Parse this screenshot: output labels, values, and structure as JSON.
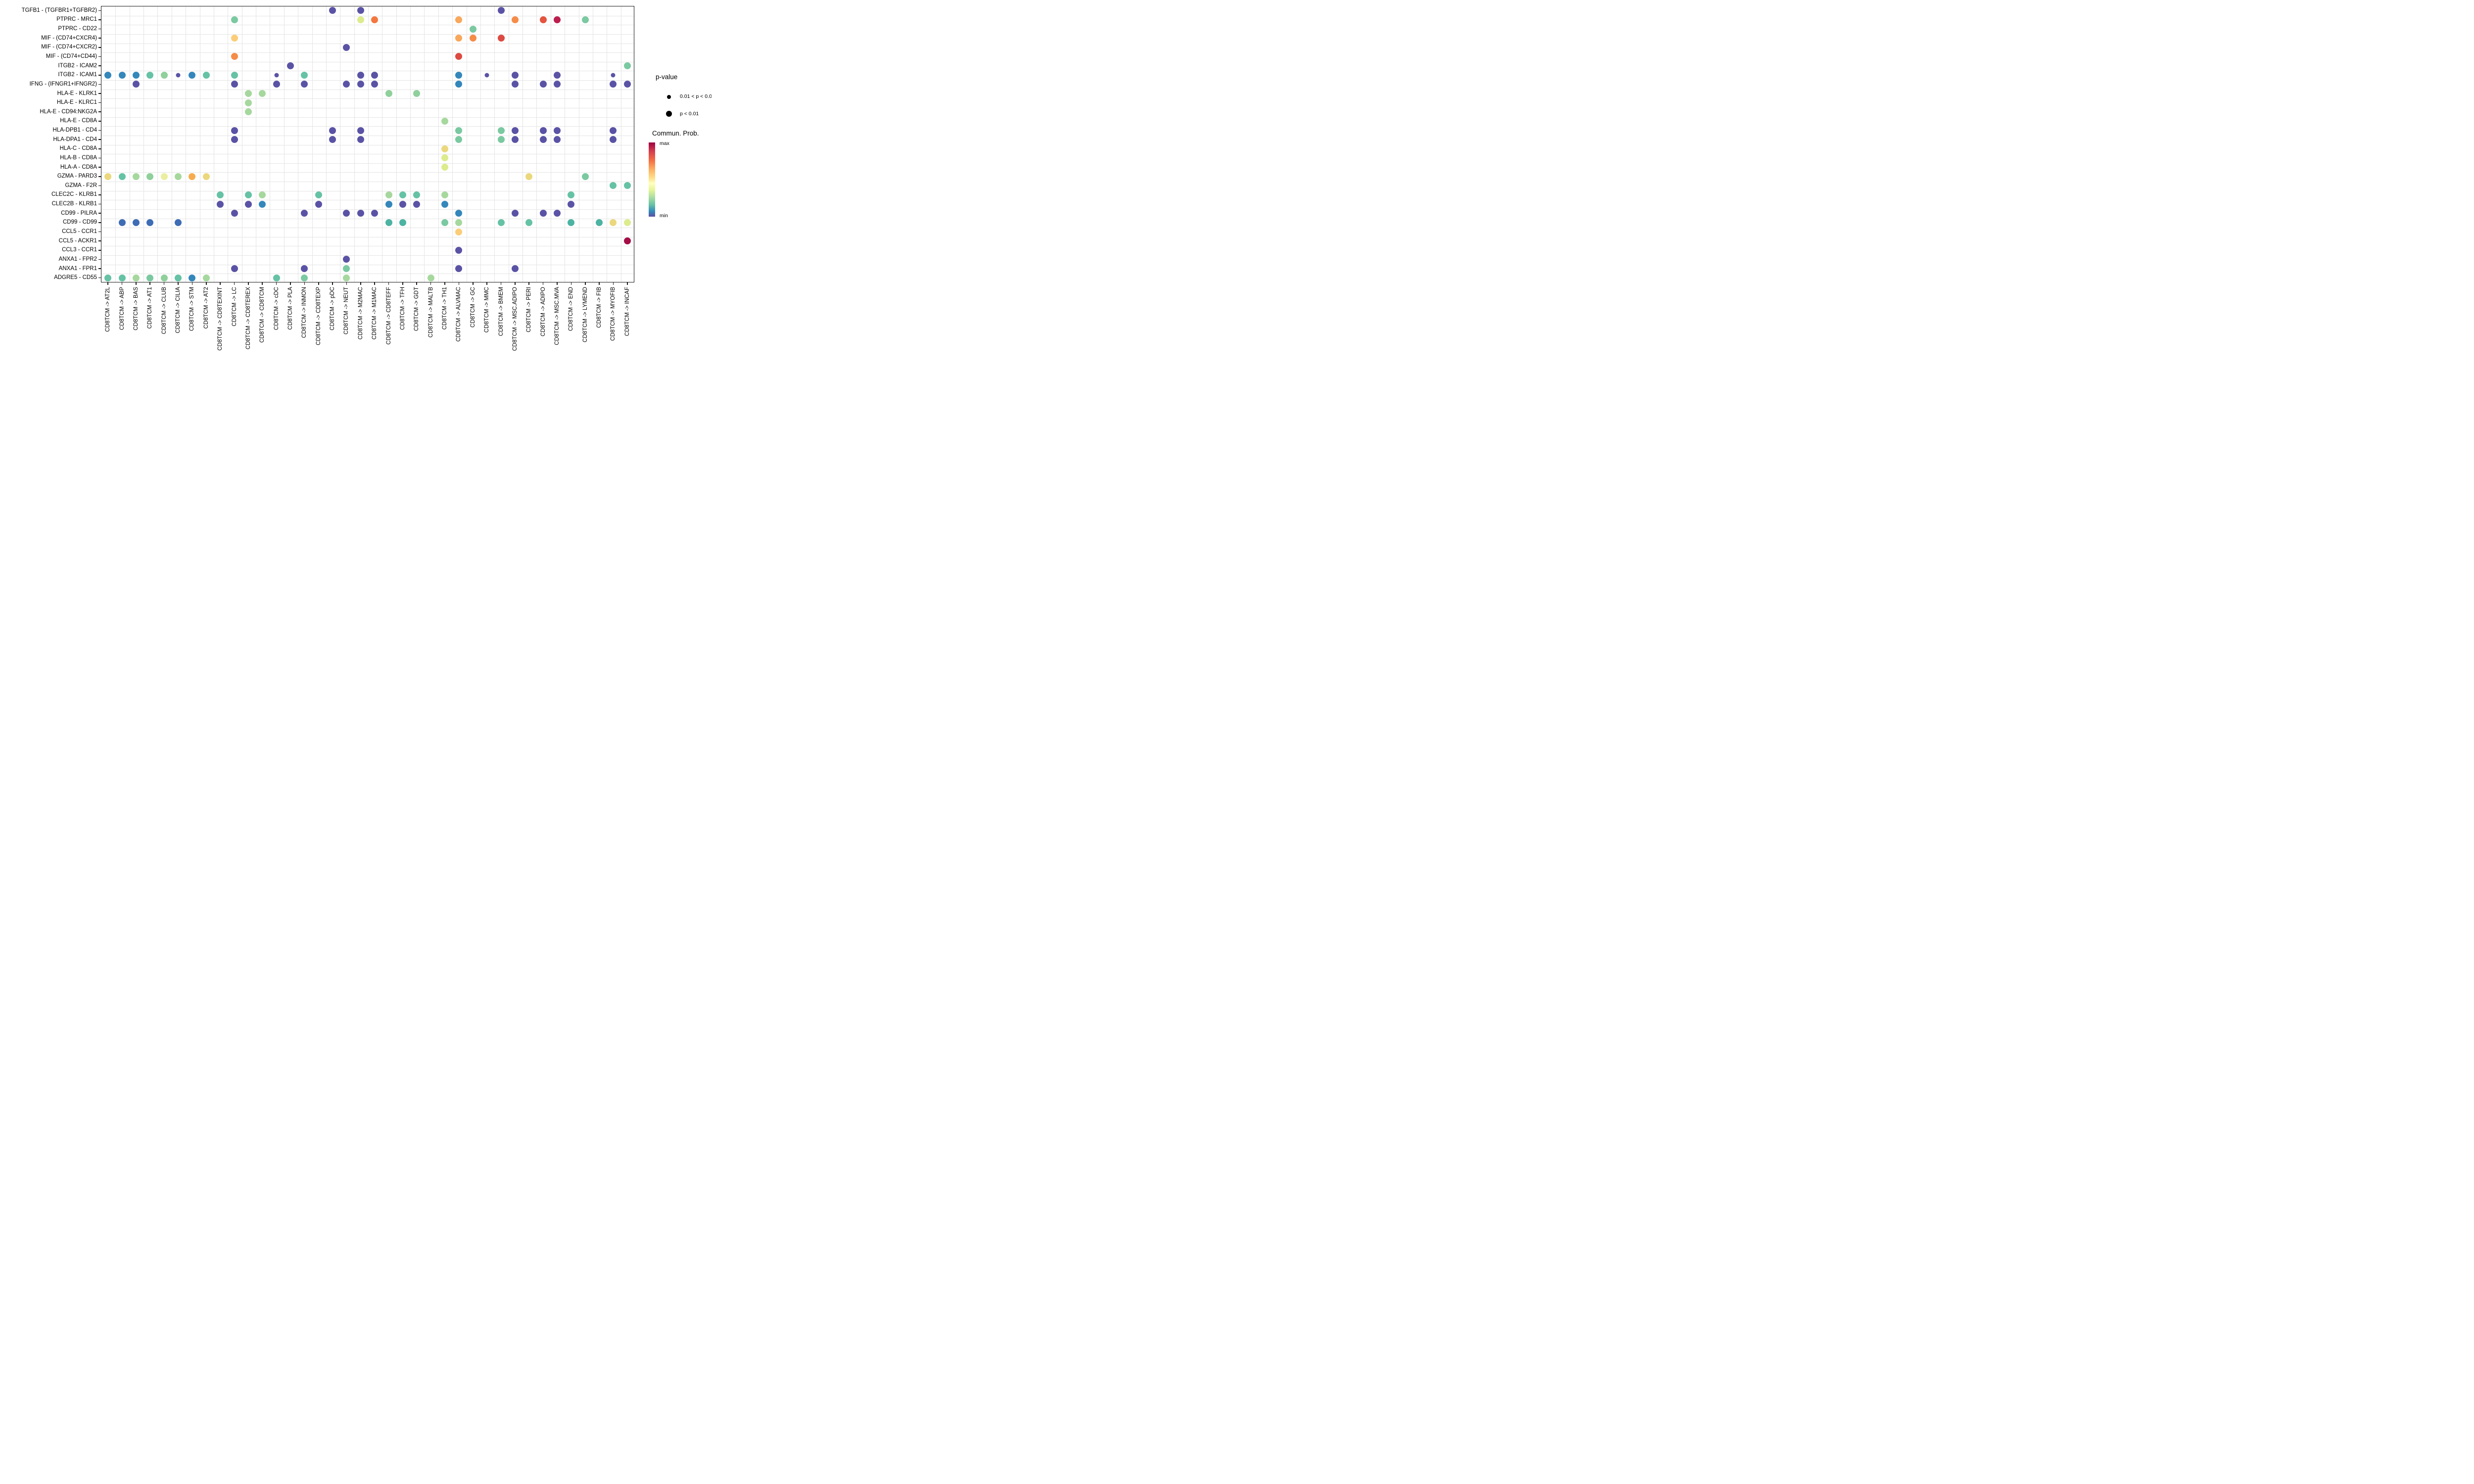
{
  "chart_data": {
    "type": "scatter",
    "title": "",
    "xlabel": "",
    "ylabel": "",
    "grid": "on",
    "legend_position": "right",
    "rows": [
      "TGFB1 - (TGFBR1+TGFBR2)",
      "PTPRC - MRC1",
      "PTPRC - CD22",
      "MIF - (CD74+CXCR4)",
      "MIF - (CD74+CXCR2)",
      "MIF - (CD74+CD44)",
      "ITGB2 - ICAM2",
      "ITGB2 - ICAM1",
      "IFNG - (IFNGR1+IFNGR2)",
      "HLA-E - KLRK1",
      "HLA-E - KLRC1",
      "HLA-E - CD94:NKG2A",
      "HLA-E - CD8A",
      "HLA-DPB1 - CD4",
      "HLA-DPA1 - CD4",
      "HLA-C - CD8A",
      "HLA-B - CD8A",
      "HLA-A - CD8A",
      "GZMA - PARD3",
      "GZMA - F2R",
      "CLEC2C - KLRB1",
      "CLEC2B - KLRB1",
      "CD99 - PILRA",
      "CD99 - CD99",
      "CCL5 - CCR1",
      "CCL5 - ACKR1",
      "CCL3 - CCR1",
      "ANXA1 - FPR2",
      "ANXA1 - FPR1",
      "ADGRE5 - CD55"
    ],
    "columns": [
      "CD8TCM -> AT2L",
      "CD8TCM -> ABP",
      "CD8TCM -> BAS",
      "CD8TCM -> AT1",
      "CD8TCM -> CLUB",
      "CD8TCM -> CILIA",
      "CD8TCM -> STM",
      "CD8TCM -> AT2",
      "CD8TCM -> CD8TEXINT",
      "CD8TCM -> LC",
      "CD8TCM -> CD8TEREX",
      "CD8TCM -> CD8TCM",
      "CD8TCM -> cDC",
      "CD8TCM -> PLA",
      "CD8TCM -> INMON",
      "CD8TCM -> CD8TEXP",
      "CD8TCM -> pDC",
      "CD8TCM -> NEUT",
      "CD8TCM -> M2MAC",
      "CD8TCM -> M1MAC",
      "CD8TCM -> CD8TEFF",
      "CD8TCM -> TFH",
      "CD8TCM -> GDT",
      "CD8TCM -> MALTB",
      "CD8TCM -> TH1",
      "CD8TCM -> ALVMAC",
      "CD8TCM -> GC",
      "CD8TCM -> MMC",
      "CD8TCM -> BMEM",
      "CD8TCM -> MSC.ADIPO",
      "CD8TCM -> PERI",
      "CD8TCM -> ADIPO",
      "CD8TCM -> MSC.MVA",
      "CD8TCM -> END",
      "CD8TCM -> LYMEND",
      "CD8TCM -> FIB",
      "CD8TCM -> MYOFIB",
      "CD8TCM -> INCAF"
    ],
    "palette": {
      "purple": "#5a53a5",
      "blue": "#3487bb",
      "blue2": "#3f6db5",
      "teal": "#66c2a5",
      "tealD": "#4db3a2",
      "green": "#7bc9a1",
      "greenM": "#8fd09b",
      "lgreen": "#a6d89e",
      "ylgreen": "#dcec8d",
      "pyellow": "#eaefa0",
      "yellow": "#ebd87d",
      "yorange": "#fbcd79",
      "amber": "#f6ac4e",
      "lorange": "#f9a75b",
      "orange": "#f58c48",
      "dorange": "#f4773f",
      "rorange": "#e4543f",
      "red": "#dc4a41",
      "crimson": "#bb1e4d",
      "dcrimson": "#a50d45"
    },
    "size_key": {
      "1": "p < 0.01",
      "0": "0.01 < p < 0.05"
    },
    "points": [
      [
        0,
        16,
        "purple",
        1
      ],
      [
        0,
        18,
        "purple",
        1
      ],
      [
        0,
        28,
        "purple",
        1
      ],
      [
        1,
        9,
        "green",
        1
      ],
      [
        1,
        18,
        "ylgreen",
        1
      ],
      [
        1,
        19,
        "dorange",
        1
      ],
      [
        1,
        25,
        "lorange",
        1
      ],
      [
        1,
        29,
        "orange",
        1
      ],
      [
        1,
        31,
        "rorange",
        1
      ],
      [
        1,
        32,
        "crimson",
        1
      ],
      [
        1,
        34,
        "green",
        1
      ],
      [
        2,
        26,
        "green",
        1
      ],
      [
        3,
        9,
        "yorange",
        1
      ],
      [
        3,
        25,
        "lorange",
        1
      ],
      [
        3,
        26,
        "orange",
        1
      ],
      [
        3,
        28,
        "red",
        1
      ],
      [
        4,
        17,
        "purple",
        1
      ],
      [
        5,
        9,
        "orange",
        1
      ],
      [
        5,
        25,
        "red",
        1
      ],
      [
        6,
        13,
        "purple",
        1
      ],
      [
        6,
        37,
        "green",
        1
      ],
      [
        7,
        0,
        "blue",
        1
      ],
      [
        7,
        1,
        "blue",
        1
      ],
      [
        7,
        2,
        "blue",
        1
      ],
      [
        7,
        3,
        "teal",
        1
      ],
      [
        7,
        4,
        "greenM",
        1
      ],
      [
        7,
        5,
        "purple",
        0
      ],
      [
        7,
        6,
        "blue",
        1
      ],
      [
        7,
        7,
        "teal",
        1
      ],
      [
        7,
        9,
        "teal",
        1
      ],
      [
        7,
        12,
        "purple",
        0
      ],
      [
        7,
        14,
        "teal",
        1
      ],
      [
        7,
        18,
        "purple",
        1
      ],
      [
        7,
        19,
        "purple",
        1
      ],
      [
        7,
        25,
        "blue",
        1
      ],
      [
        7,
        27,
        "purple",
        0
      ],
      [
        7,
        29,
        "purple",
        1
      ],
      [
        7,
        32,
        "purple",
        1
      ],
      [
        7,
        36,
        "purple",
        0
      ],
      [
        8,
        2,
        "purple",
        1
      ],
      [
        8,
        9,
        "purple",
        1
      ],
      [
        8,
        12,
        "purple",
        1
      ],
      [
        8,
        14,
        "purple",
        1
      ],
      [
        8,
        17,
        "purple",
        1
      ],
      [
        8,
        18,
        "purple",
        1
      ],
      [
        8,
        19,
        "purple",
        1
      ],
      [
        8,
        25,
        "blue",
        1
      ],
      [
        8,
        29,
        "purple",
        1
      ],
      [
        8,
        31,
        "purple",
        1
      ],
      [
        8,
        32,
        "purple",
        1
      ],
      [
        8,
        36,
        "purple",
        1
      ],
      [
        8,
        37,
        "purple",
        1
      ],
      [
        9,
        10,
        "lgreen",
        1
      ],
      [
        9,
        11,
        "lgreen",
        1
      ],
      [
        9,
        20,
        "greenM",
        1
      ],
      [
        9,
        22,
        "greenM",
        1
      ],
      [
        10,
        10,
        "lgreen",
        1
      ],
      [
        11,
        10,
        "lgreen",
        1
      ],
      [
        12,
        24,
        "lgreen",
        1
      ],
      [
        13,
        9,
        "purple",
        1
      ],
      [
        13,
        16,
        "purple",
        1
      ],
      [
        13,
        18,
        "purple",
        1
      ],
      [
        13,
        25,
        "green",
        1
      ],
      [
        13,
        28,
        "green",
        1
      ],
      [
        13,
        29,
        "purple",
        1
      ],
      [
        13,
        31,
        "purple",
        1
      ],
      [
        13,
        32,
        "purple",
        1
      ],
      [
        13,
        36,
        "purple",
        1
      ],
      [
        14,
        9,
        "purple",
        1
      ],
      [
        14,
        16,
        "purple",
        1
      ],
      [
        14,
        18,
        "purple",
        1
      ],
      [
        14,
        25,
        "green",
        1
      ],
      [
        14,
        28,
        "green",
        1
      ],
      [
        14,
        29,
        "purple",
        1
      ],
      [
        14,
        31,
        "purple",
        1
      ],
      [
        14,
        32,
        "purple",
        1
      ],
      [
        14,
        36,
        "purple",
        1
      ],
      [
        15,
        24,
        "yellow",
        1
      ],
      [
        16,
        24,
        "ylgreen",
        1
      ],
      [
        17,
        24,
        "ylgreen",
        1
      ],
      [
        18,
        0,
        "yellow",
        1
      ],
      [
        18,
        1,
        "teal",
        1
      ],
      [
        18,
        2,
        "lgreen",
        1
      ],
      [
        18,
        3,
        "greenM",
        1
      ],
      [
        18,
        4,
        "pyellow",
        1
      ],
      [
        18,
        5,
        "lgreen",
        1
      ],
      [
        18,
        6,
        "amber",
        1
      ],
      [
        18,
        7,
        "yellow",
        1
      ],
      [
        18,
        30,
        "yellow",
        1
      ],
      [
        18,
        34,
        "green",
        1
      ],
      [
        19,
        36,
        "teal",
        1
      ],
      [
        19,
        37,
        "teal",
        1
      ],
      [
        20,
        8,
        "teal",
        1
      ],
      [
        20,
        10,
        "teal",
        1
      ],
      [
        20,
        11,
        "lgreen",
        1
      ],
      [
        20,
        15,
        "teal",
        1
      ],
      [
        20,
        20,
        "lgreen",
        1
      ],
      [
        20,
        21,
        "teal",
        1
      ],
      [
        20,
        22,
        "teal",
        1
      ],
      [
        20,
        24,
        "lgreen",
        1
      ],
      [
        20,
        33,
        "teal",
        1
      ],
      [
        21,
        8,
        "purple",
        1
      ],
      [
        21,
        10,
        "purple",
        1
      ],
      [
        21,
        11,
        "blue",
        1
      ],
      [
        21,
        15,
        "purple",
        1
      ],
      [
        21,
        20,
        "blue",
        1
      ],
      [
        21,
        21,
        "purple",
        1
      ],
      [
        21,
        22,
        "purple",
        1
      ],
      [
        21,
        24,
        "blue",
        1
      ],
      [
        21,
        33,
        "purple",
        1
      ],
      [
        22,
        9,
        "purple",
        1
      ],
      [
        22,
        14,
        "purple",
        1
      ],
      [
        22,
        17,
        "purple",
        1
      ],
      [
        22,
        18,
        "purple",
        1
      ],
      [
        22,
        19,
        "purple",
        1
      ],
      [
        22,
        25,
        "blue",
        1
      ],
      [
        22,
        29,
        "purple",
        1
      ],
      [
        22,
        31,
        "purple",
        1
      ],
      [
        22,
        32,
        "purple",
        1
      ],
      [
        23,
        1,
        "blue2",
        1
      ],
      [
        23,
        2,
        "blue2",
        1
      ],
      [
        23,
        3,
        "blue2",
        1
      ],
      [
        23,
        5,
        "blue2",
        1
      ],
      [
        23,
        20,
        "tealD",
        1
      ],
      [
        23,
        21,
        "tealD",
        1
      ],
      [
        23,
        24,
        "green",
        1
      ],
      [
        23,
        25,
        "lgreen",
        1
      ],
      [
        23,
        28,
        "teal",
        1
      ],
      [
        23,
        30,
        "teal",
        1
      ],
      [
        23,
        33,
        "tealD",
        1
      ],
      [
        23,
        35,
        "tealD",
        1
      ],
      [
        23,
        36,
        "yellow",
        1
      ],
      [
        23,
        37,
        "ylgreen",
        1
      ],
      [
        24,
        25,
        "yorange",
        1
      ],
      [
        25,
        37,
        "dcrimson",
        1
      ],
      [
        26,
        25,
        "purple",
        1
      ],
      [
        27,
        17,
        "purple",
        1
      ],
      [
        28,
        9,
        "purple",
        1
      ],
      [
        28,
        14,
        "purple",
        1
      ],
      [
        28,
        17,
        "green",
        1
      ],
      [
        28,
        25,
        "purple",
        1
      ],
      [
        28,
        29,
        "purple",
        1
      ],
      [
        29,
        0,
        "teal",
        1
      ],
      [
        29,
        1,
        "teal",
        1
      ],
      [
        29,
        2,
        "lgreen",
        1
      ],
      [
        29,
        3,
        "green",
        1
      ],
      [
        29,
        4,
        "greenM",
        1
      ],
      [
        29,
        5,
        "teal",
        1
      ],
      [
        29,
        6,
        "blue",
        1
      ],
      [
        29,
        7,
        "lgreen",
        1
      ],
      [
        29,
        12,
        "teal",
        1
      ],
      [
        29,
        14,
        "green",
        1
      ],
      [
        29,
        17,
        "lgreen",
        1
      ],
      [
        29,
        23,
        "lgreen",
        1
      ]
    ],
    "legend": {
      "pvalue_title": "p-value",
      "size_items": [
        {
          "label": "0.01 < p < 0.05",
          "size": "small"
        },
        {
          "label": "p < 0.01",
          "size": "large"
        }
      ],
      "prob_title": "Commun. Prob.",
      "max_label": "max",
      "min_label": "min"
    }
  }
}
